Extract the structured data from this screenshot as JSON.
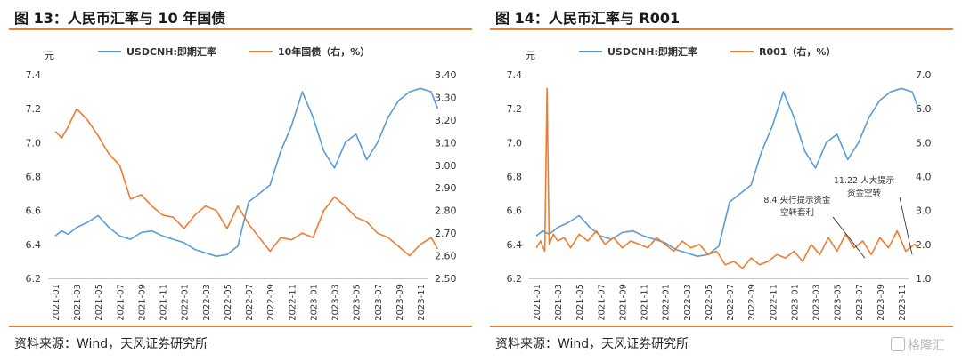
{
  "charts": [
    {
      "title": "图 13：人民币汇率与 10 年国债",
      "source": "资料来源：Wind，天风证券研究所",
      "chart_data": {
        "type": "line",
        "ylabel_left": "元",
        "x_ticks": [
          "2021-01",
          "2021-03",
          "2021-05",
          "2021-07",
          "2021-09",
          "2021-11",
          "2022-01",
          "2022-03",
          "2022-05",
          "2022-07",
          "2022-09",
          "2022-11",
          "2023-01",
          "2023-03",
          "2023-05",
          "2023-07",
          "2023-09",
          "2023-11"
        ],
        "ylim_left": [
          6.2,
          7.4
        ],
        "yticks_left": [
          "6.2",
          "6.4",
          "6.6",
          "6.8",
          "7.0",
          "7.2",
          "7.4"
        ],
        "ylim_right": [
          2.5,
          3.4
        ],
        "yticks_right": [
          "2.50",
          "2.60",
          "2.70",
          "2.80",
          "2.90",
          "3.00",
          "3.10",
          "3.20",
          "3.30",
          "3.40"
        ],
        "legend": [
          "USDCNH:即期汇率",
          "10年国债（右，%）"
        ],
        "colors": {
          "left": "#5b9bd5",
          "right": "#ed7d31"
        },
        "series": [
          {
            "name": "USDCNH:即期汇率",
            "axis": "left",
            "x": [
              0,
              0.3,
              0.6,
              1,
              1.5,
              2,
              2.5,
              3,
              3.5,
              4,
              4.5,
              5,
              5.5,
              6,
              6.5,
              7,
              7.5,
              8,
              8.5,
              9,
              9.5,
              10,
              10.5,
              11,
              11.5,
              12,
              12.5,
              13,
              13.5,
              14,
              14.5,
              15,
              15.5,
              16,
              16.5,
              17,
              17.5,
              17.8
            ],
            "y": [
              6.45,
              6.48,
              6.46,
              6.5,
              6.53,
              6.57,
              6.5,
              6.45,
              6.43,
              6.47,
              6.48,
              6.45,
              6.43,
              6.41,
              6.37,
              6.35,
              6.33,
              6.34,
              6.39,
              6.65,
              6.7,
              6.75,
              6.95,
              7.1,
              7.3,
              7.15,
              6.95,
              6.85,
              7.0,
              7.05,
              6.9,
              7.0,
              7.15,
              7.25,
              7.3,
              7.32,
              7.3,
              7.2
            ]
          },
          {
            "name": "10年国债（右，%）",
            "axis": "right",
            "x": [
              0,
              0.3,
              0.6,
              1,
              1.5,
              2,
              2.5,
              3,
              3.5,
              4,
              4.5,
              5,
              5.5,
              6,
              6.5,
              7,
              7.5,
              8,
              8.5,
              9,
              9.5,
              10,
              10.5,
              11,
              11.5,
              12,
              12.5,
              13,
              13.5,
              14,
              14.5,
              15,
              15.5,
              16,
              16.5,
              17,
              17.5,
              17.8
            ],
            "y": [
              3.15,
              3.12,
              3.17,
              3.25,
              3.2,
              3.13,
              3.05,
              3.0,
              2.85,
              2.87,
              2.82,
              2.78,
              2.77,
              2.72,
              2.78,
              2.82,
              2.8,
              2.72,
              2.82,
              2.74,
              2.68,
              2.62,
              2.68,
              2.67,
              2.7,
              2.68,
              2.8,
              2.86,
              2.82,
              2.77,
              2.75,
              2.7,
              2.68,
              2.64,
              2.6,
              2.65,
              2.68,
              2.63
            ]
          }
        ]
      }
    },
    {
      "title": "图 14：人民币汇率与 R001",
      "source": "资料来源：Wind，天风证券研究所",
      "chart_data": {
        "type": "line",
        "ylabel_left": "元",
        "x_ticks": [
          "2021-01",
          "2021-03",
          "2021-05",
          "2021-07",
          "2021-09",
          "2021-11",
          "2022-01",
          "2022-03",
          "2022-05",
          "2022-07",
          "2022-09",
          "2022-11",
          "2023-01",
          "2023-03",
          "2023-05",
          "2023-07",
          "2023-09",
          "2023-11"
        ],
        "ylim_left": [
          6.2,
          7.4
        ],
        "yticks_left": [
          "6.2",
          "6.4",
          "6.6",
          "6.8",
          "7.0",
          "7.2",
          "7.4"
        ],
        "ylim_right": [
          1.0,
          7.0
        ],
        "yticks_right": [
          "1.0",
          "2.0",
          "3.0",
          "4.0",
          "5.0",
          "6.0",
          "7.0"
        ],
        "legend": [
          "USDCNH:即期汇率",
          "R001（右，%）"
        ],
        "colors": {
          "left": "#5b9bd5",
          "right": "#ed7d31"
        },
        "annotations": [
          {
            "text_lines": [
              "8.4 央行提示资金",
              "空转套利"
            ],
            "x": 15.3,
            "y": 1.6
          },
          {
            "text_lines": [
              "11.22 人大提示",
              "资金空转"
            ],
            "x": 17.5,
            "y": 1.7
          }
        ],
        "series": [
          {
            "name": "USDCNH:即期汇率",
            "axis": "left",
            "x": [
              0,
              0.3,
              0.6,
              1,
              1.5,
              2,
              2.5,
              3,
              3.5,
              4,
              4.5,
              5,
              5.5,
              6,
              6.5,
              7,
              7.5,
              8,
              8.5,
              9,
              9.5,
              10,
              10.5,
              11,
              11.5,
              12,
              12.5,
              13,
              13.5,
              14,
              14.5,
              15,
              15.5,
              16,
              16.5,
              17,
              17.5,
              17.8
            ],
            "y": [
              6.45,
              6.48,
              6.46,
              6.5,
              6.53,
              6.57,
              6.5,
              6.45,
              6.43,
              6.47,
              6.48,
              6.45,
              6.43,
              6.41,
              6.37,
              6.35,
              6.33,
              6.34,
              6.39,
              6.65,
              6.7,
              6.75,
              6.95,
              7.1,
              7.3,
              7.15,
              6.95,
              6.85,
              7.0,
              7.05,
              6.9,
              7.0,
              7.15,
              7.25,
              7.3,
              7.32,
              7.3,
              7.2
            ]
          },
          {
            "name": "R001（右，%）",
            "axis": "right",
            "x": [
              0,
              0.2,
              0.4,
              0.5,
              0.6,
              0.8,
              1,
              1.3,
              1.6,
              2,
              2.4,
              2.8,
              3.2,
              3.6,
              4,
              4.4,
              4.8,
              5.2,
              5.6,
              6,
              6.4,
              6.8,
              7.2,
              7.6,
              8,
              8.4,
              8.8,
              9.2,
              9.6,
              10,
              10.4,
              10.8,
              11.2,
              11.6,
              12,
              12.4,
              12.8,
              13.2,
              13.6,
              14,
              14.4,
              14.8,
              15.2,
              15.6,
              16,
              16.4,
              16.8,
              17.2,
              17.6,
              17.8
            ],
            "y": [
              1.9,
              2.1,
              1.8,
              6.6,
              2.0,
              2.3,
              2.1,
              2.2,
              1.9,
              2.3,
              2.1,
              2.4,
              2.0,
              2.2,
              1.9,
              2.1,
              2.0,
              1.9,
              2.2,
              2.0,
              1.8,
              2.1,
              1.9,
              2.0,
              1.7,
              1.8,
              1.4,
              1.5,
              1.3,
              1.6,
              1.4,
              1.5,
              1.7,
              1.6,
              1.8,
              1.5,
              2.0,
              1.7,
              2.2,
              1.8,
              2.3,
              1.9,
              2.1,
              1.7,
              2.2,
              1.9,
              2.4,
              1.8,
              2.0,
              1.9
            ]
          }
        ]
      }
    }
  ],
  "watermark": "格隆汇"
}
